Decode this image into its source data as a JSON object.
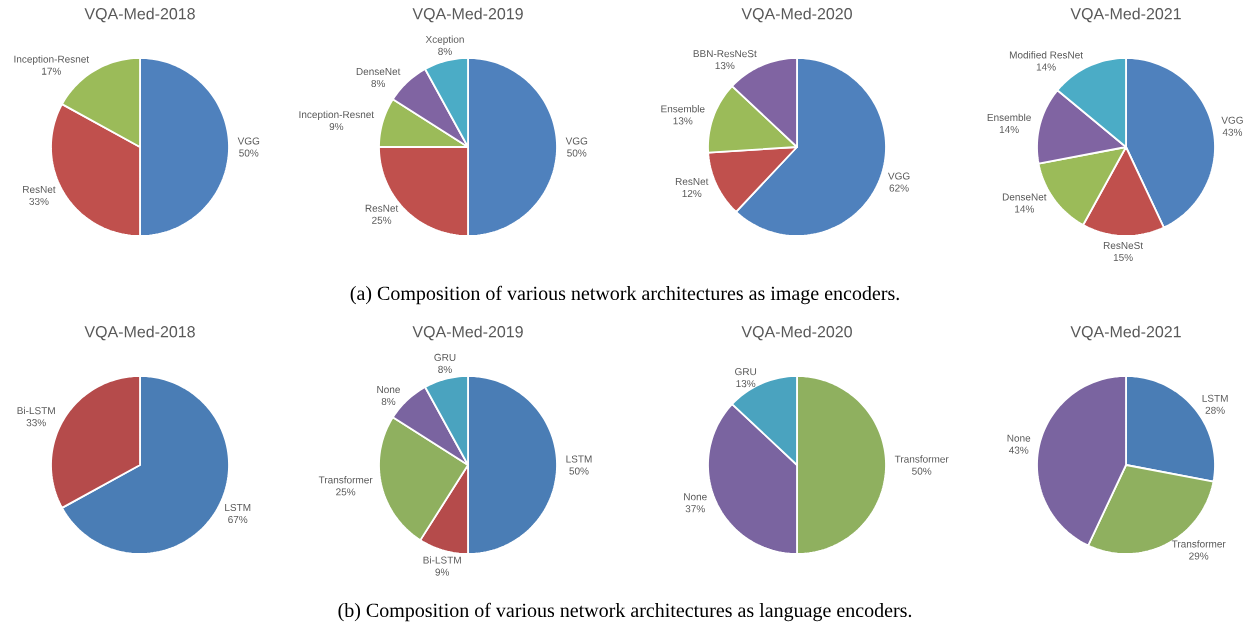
{
  "chart_data": [
    {
      "type": "pie",
      "title": "VQA-Med-2018",
      "categories": [
        "VGG",
        "ResNet",
        "Inception-Resnet"
      ],
      "values": [
        50,
        33,
        17
      ],
      "value_labels": [
        "50%",
        "33%",
        "17%"
      ],
      "colors": [
        "#4f81bd",
        "#c0504d",
        "#9bbb59"
      ],
      "annotations": [
        "(a) Composition of various network architectures as image encoders."
      ]
    },
    {
      "type": "pie",
      "title": "VQA-Med-2019",
      "categories": [
        "VGG",
        "ResNet",
        "Inception-Resnet",
        "DenseNet",
        "Xception"
      ],
      "values": [
        50,
        25,
        9,
        8,
        8
      ],
      "value_labels": [
        "50%",
        "25%",
        "9%",
        "8%",
        "8%"
      ],
      "colors": [
        "#4f81bd",
        "#c0504d",
        "#9bbb59",
        "#8064a2",
        "#4bacc6"
      ]
    },
    {
      "type": "pie",
      "title": "VQA-Med-2020",
      "categories": [
        "VGG",
        "ResNet",
        "Ensemble",
        "BBN-ResNeSt"
      ],
      "values": [
        62,
        12,
        13,
        13
      ],
      "value_labels": [
        "62%",
        "12%",
        "13%",
        "13%"
      ],
      "colors": [
        "#4f81bd",
        "#c0504d",
        "#9bbb59",
        "#8064a2"
      ]
    },
    {
      "type": "pie",
      "title": "VQA-Med-2021",
      "categories": [
        "VGG",
        "ResNeSt",
        "DenseNet",
        "Ensemble",
        "Modified ResNet"
      ],
      "values": [
        43,
        15,
        14,
        14,
        14
      ],
      "value_labels": [
        "43%",
        "15%",
        "14%",
        "14%",
        "14%"
      ],
      "colors": [
        "#4f81bd",
        "#c0504d",
        "#9bbb59",
        "#8064a2",
        "#4bacc6"
      ]
    },
    {
      "type": "pie",
      "title": "VQA-Med-2018",
      "categories": [
        "LSTM",
        "Bi-LSTM"
      ],
      "values": [
        67,
        33
      ],
      "value_labels": [
        "67%",
        "33%"
      ],
      "colors": [
        "#4a7db5",
        "#b54b4b"
      ],
      "annotations": [
        "(b) Composition of various network architectures as language encoders."
      ]
    },
    {
      "type": "pie",
      "title": "VQA-Med-2019",
      "categories": [
        "LSTM",
        "Bi-LSTM",
        "Transformer",
        "None",
        "GRU"
      ],
      "values": [
        50,
        9,
        25,
        8,
        8
      ],
      "value_labels": [
        "50%",
        "9%",
        "25%",
        "8%",
        "8%"
      ],
      "colors": [
        "#4a7db5",
        "#b54b4b",
        "#8fb05f",
        "#7a64a0",
        "#4aa3bf"
      ]
    },
    {
      "type": "pie",
      "title": "VQA-Med-2020",
      "categories": [
        "Transformer",
        "None",
        "GRU"
      ],
      "values": [
        50,
        37,
        13
      ],
      "value_labels": [
        "50%",
        "37%",
        "13%"
      ],
      "colors": [
        "#8fb05f",
        "#7a64a0",
        "#4aa3bf"
      ]
    },
    {
      "type": "pie",
      "title": "VQA-Med-2021",
      "categories": [
        "LSTM",
        "Transformer",
        "None"
      ],
      "values": [
        28,
        29,
        43
      ],
      "value_labels": [
        "28%",
        "29%",
        "43%"
      ],
      "colors": [
        "#4a7db5",
        "#8fb05f",
        "#7a64a0"
      ]
    }
  ]
}
